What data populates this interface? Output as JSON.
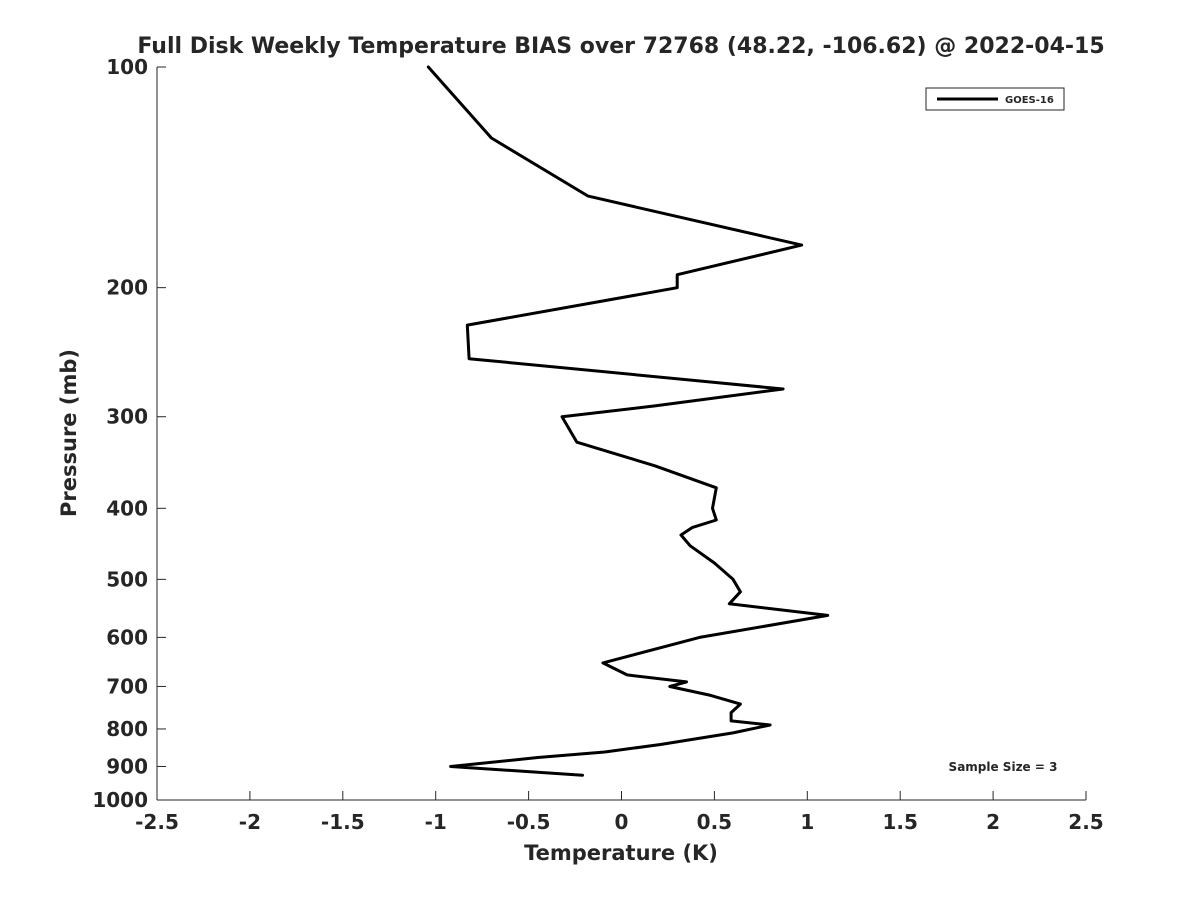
{
  "chart_data": {
    "type": "line",
    "title": "Full Disk Weekly Temperature BIAS over 72768 (48.22, -106.62) @ 2022-04-15",
    "xlabel": "Temperature (K)",
    "ylabel": "Pressure (mb)",
    "xlim": [
      -2.5,
      2.5
    ],
    "ylim": [
      100,
      1000
    ],
    "y_scale": "log",
    "y_reversed": true,
    "grid": false,
    "legend_position": "top-right",
    "xticks": [
      -2.5,
      -2,
      -1.5,
      -1,
      -0.5,
      0,
      0.5,
      1,
      1.5,
      2,
      2.5
    ],
    "xtick_labels": [
      "-2.5",
      "-2",
      "-1.5",
      "-1",
      "-0.5",
      "0",
      "0.5",
      "1",
      "1.5",
      "2",
      "2.5"
    ],
    "yticks": [
      100,
      200,
      300,
      400,
      500,
      600,
      700,
      800,
      900,
      1000
    ],
    "ytick_labels": [
      "100",
      "200",
      "300",
      "400",
      "500",
      "600",
      "700",
      "800",
      "900",
      "1000"
    ],
    "annotation": "Sample Size = 3",
    "series": [
      {
        "name": "GOES-16",
        "color": "#000000",
        "points": [
          [
            -1.04,
            100
          ],
          [
            -0.7,
            125
          ],
          [
            -0.18,
            150
          ],
          [
            0.97,
            175
          ],
          [
            0.3,
            192
          ],
          [
            0.3,
            200
          ],
          [
            -0.83,
            225
          ],
          [
            -0.82,
            250
          ],
          [
            0.87,
            275
          ],
          [
            0.18,
            290
          ],
          [
            -0.32,
            300
          ],
          [
            -0.24,
            325
          ],
          [
            0.18,
            350
          ],
          [
            0.51,
            375
          ],
          [
            0.49,
            400
          ],
          [
            0.51,
            415
          ],
          [
            0.38,
            425
          ],
          [
            0.32,
            435
          ],
          [
            0.37,
            450
          ],
          [
            0.5,
            475
          ],
          [
            0.6,
            500
          ],
          [
            0.64,
            520
          ],
          [
            0.58,
            540
          ],
          [
            1.11,
            560
          ],
          [
            0.42,
            600
          ],
          [
            -0.1,
            650
          ],
          [
            0.03,
            675
          ],
          [
            0.35,
            690
          ],
          [
            0.26,
            700
          ],
          [
            0.48,
            720
          ],
          [
            0.64,
            740
          ],
          [
            0.59,
            760
          ],
          [
            0.59,
            780
          ],
          [
            0.8,
            790
          ],
          [
            0.6,
            810
          ],
          [
            0.21,
            840
          ],
          [
            -0.09,
            860
          ],
          [
            -0.45,
            875
          ],
          [
            -0.92,
            900
          ],
          [
            -0.21,
            925
          ]
        ]
      }
    ]
  }
}
